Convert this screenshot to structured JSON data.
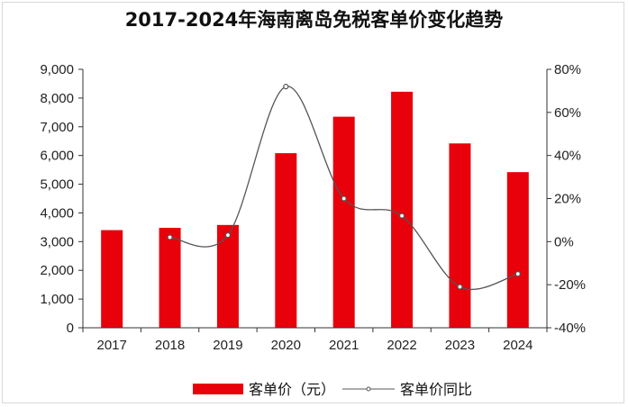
{
  "title": "2017-2024年海南离岛免税客单价变化趋势",
  "colors": {
    "bar": "#e8000b",
    "line": "#555555",
    "axis": "#333333"
  },
  "chart_data": {
    "type": "bar",
    "categories": [
      "2017",
      "2018",
      "2019",
      "2020",
      "2021",
      "2022",
      "2023",
      "2024"
    ],
    "series": [
      {
        "name": "客单价（元）",
        "type": "bar",
        "axis": "left",
        "values": [
          3400,
          3480,
          3580,
          6080,
          7350,
          8220,
          6420,
          5420
        ]
      },
      {
        "name": "客单价同比",
        "type": "line",
        "axis": "right",
        "unit": "%",
        "x": [
          "2018",
          "2019",
          "2020",
          "2021",
          "2022",
          "2023",
          "2024"
        ],
        "values": [
          2,
          3,
          72,
          20,
          12,
          -21,
          -15
        ]
      }
    ],
    "y_left": {
      "ylim": [
        0,
        9000
      ],
      "ticks": [
        "0",
        "1,000",
        "2,000",
        "3,000",
        "4,000",
        "5,000",
        "6,000",
        "7,000",
        "8,000",
        "9,000"
      ]
    },
    "y_right": {
      "ylim": [
        -40,
        80
      ],
      "ticks": [
        "-40%",
        "-20%",
        "0%",
        "20%",
        "40%",
        "60%",
        "80%"
      ]
    },
    "legend": {
      "position": "bottom",
      "items": [
        "客单价（元）",
        "客单价同比"
      ]
    }
  }
}
